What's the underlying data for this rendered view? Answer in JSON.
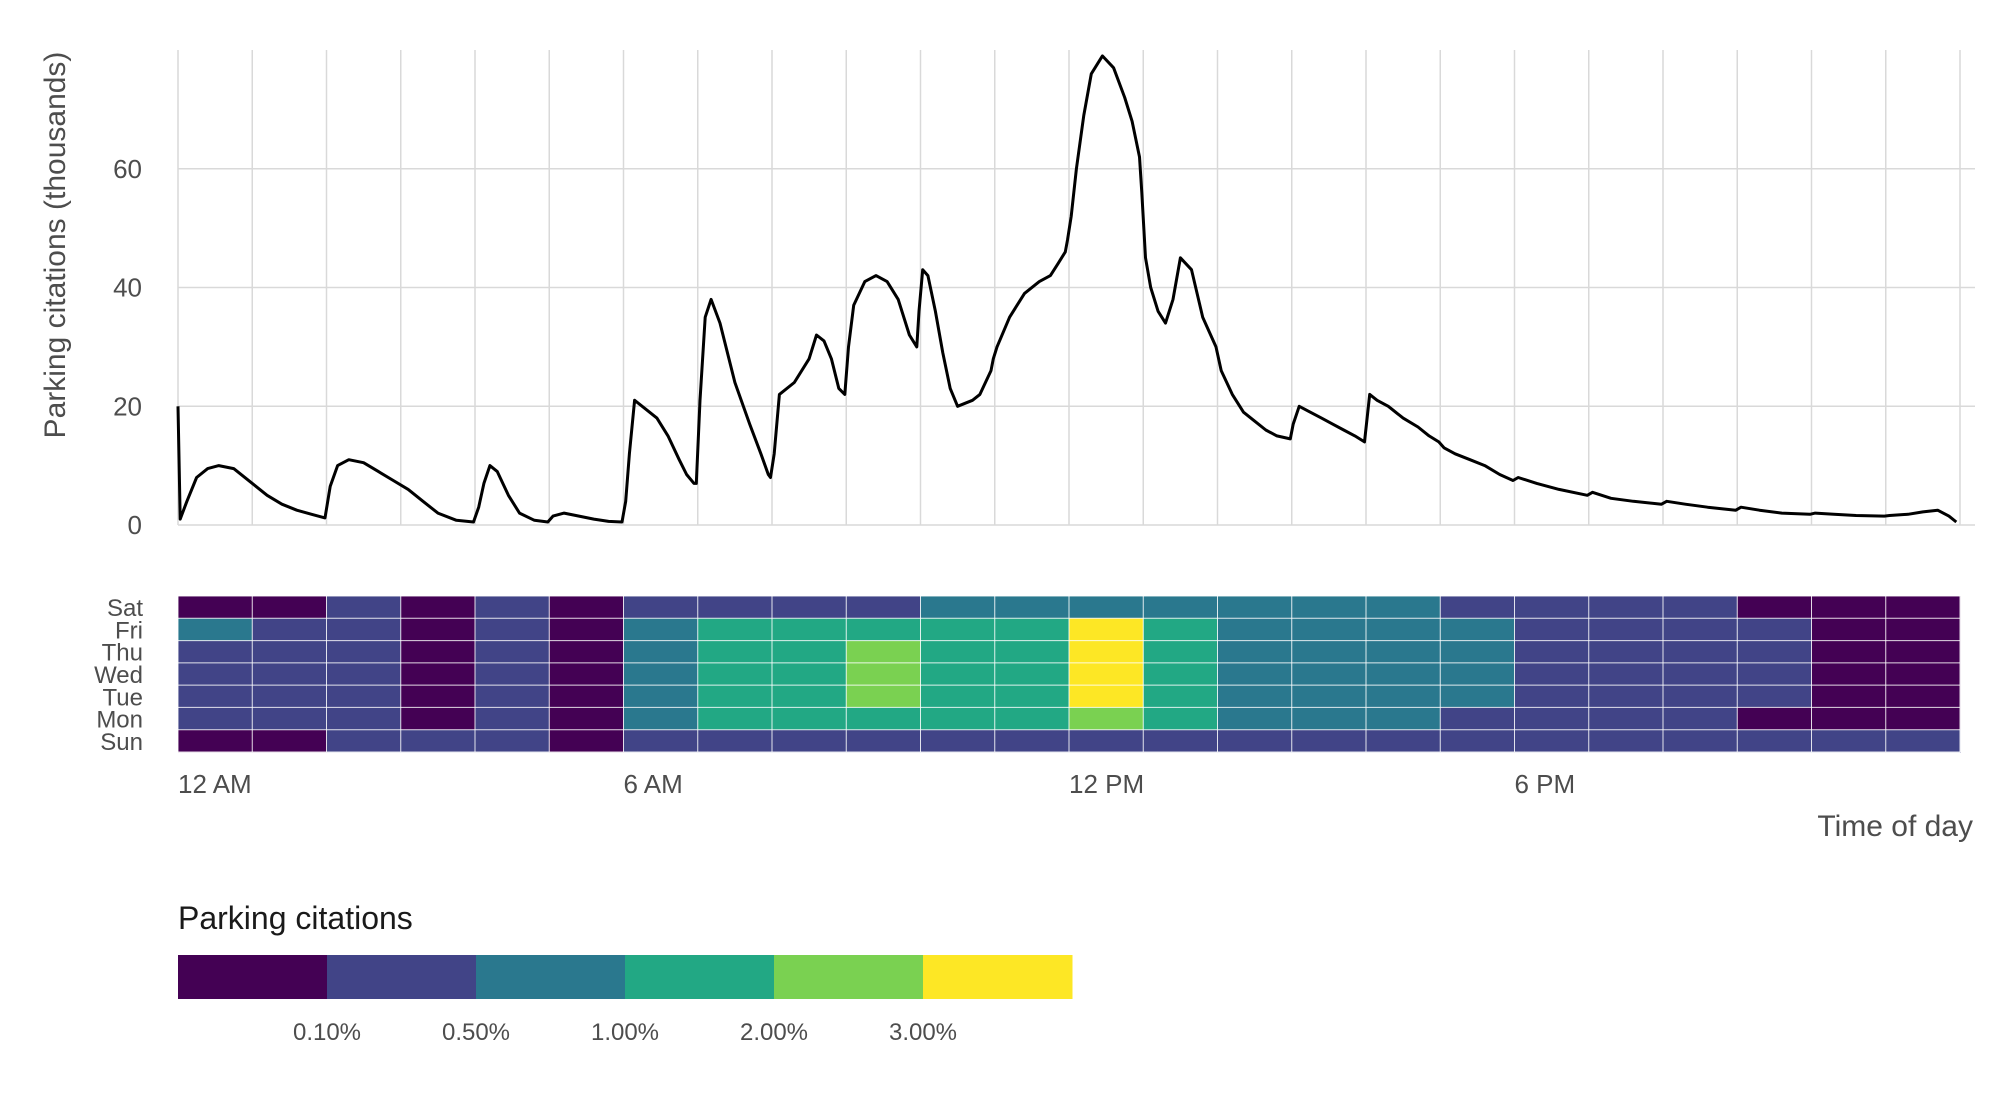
{
  "chart_data": [
    {
      "type": "line",
      "ylabel": "Parking citations (thousands)",
      "y_ticks": [
        0,
        20,
        40,
        60
      ],
      "ylim": [
        0,
        80
      ],
      "xlim": [
        0,
        24
      ],
      "grid": true,
      "x_unit": "hour of day",
      "series": [
        {
          "color": "#000000",
          "x": [
            0.0,
            0.03,
            0.12,
            0.25,
            0.4,
            0.55,
            0.75,
            1.0,
            1.2,
            1.4,
            1.6,
            1.8,
            1.98,
            2.05,
            2.15,
            2.3,
            2.5,
            2.7,
            2.9,
            3.1,
            3.3,
            3.5,
            3.75,
            3.98,
            4.05,
            4.12,
            4.2,
            4.3,
            4.45,
            4.6,
            4.8,
            4.98,
            5.05,
            5.2,
            5.4,
            5.6,
            5.8,
            5.98,
            6.03,
            6.08,
            6.15,
            6.3,
            6.45,
            6.6,
            6.75,
            6.85,
            6.95,
            6.98,
            7.03,
            7.1,
            7.18,
            7.3,
            7.5,
            7.7,
            7.85,
            7.95,
            7.98,
            8.03,
            8.1,
            8.3,
            8.5,
            8.6,
            8.7,
            8.8,
            8.9,
            8.98,
            9.03,
            9.1,
            9.25,
            9.4,
            9.55,
            9.7,
            9.85,
            9.95,
            9.98,
            10.03,
            10.1,
            10.2,
            10.3,
            10.4,
            10.5,
            10.6,
            10.7,
            10.8,
            10.95,
            10.98,
            11.03,
            11.2,
            11.4,
            11.6,
            11.75,
            11.85,
            11.95,
            11.98,
            12.03,
            12.1,
            12.2,
            12.3,
            12.45,
            12.6,
            12.75,
            12.85,
            12.95,
            12.98,
            13.03,
            13.1,
            13.2,
            13.3,
            13.4,
            13.5,
            13.65,
            13.8,
            13.98,
            14.05,
            14.2,
            14.35,
            14.5,
            14.65,
            14.8,
            14.98,
            15.02,
            15.1,
            15.25,
            15.4,
            15.55,
            15.7,
            15.85,
            15.98,
            16.05,
            16.15,
            16.3,
            16.5,
            16.7,
            16.85,
            16.98,
            17.05,
            17.2,
            17.4,
            17.6,
            17.8,
            17.98,
            18.05,
            18.3,
            18.6,
            18.98,
            19.05,
            19.3,
            19.6,
            19.98,
            20.05,
            20.3,
            20.6,
            20.98,
            21.05,
            21.3,
            21.6,
            21.98,
            22.05,
            22.3,
            22.6,
            22.98,
            23.05,
            23.3,
            23.5,
            23.7,
            23.85,
            23.95
          ],
          "y": [
            20.0,
            1.0,
            4.0,
            8.0,
            9.5,
            10.0,
            9.5,
            7.0,
            5.0,
            3.5,
            2.5,
            1.8,
            1.2,
            6.5,
            10.0,
            11.0,
            10.5,
            9.0,
            7.5,
            6.0,
            4.0,
            2.0,
            0.8,
            0.5,
            3.0,
            7.0,
            10.0,
            9.0,
            5.0,
            2.0,
            0.8,
            0.5,
            1.5,
            2.0,
            1.5,
            1.0,
            0.6,
            0.5,
            4.0,
            12.0,
            21.0,
            19.5,
            18.0,
            15.0,
            11.0,
            8.5,
            7.0,
            7.0,
            21.0,
            35.0,
            38.0,
            34.0,
            24.0,
            17.0,
            12.0,
            8.5,
            8.0,
            12.0,
            22.0,
            24.0,
            28.0,
            32.0,
            31.0,
            28.0,
            23.0,
            22.0,
            30.0,
            37.0,
            41.0,
            42.0,
            41.0,
            38.0,
            32.0,
            30.0,
            36.0,
            43.0,
            42.0,
            36.0,
            29.0,
            23.0,
            20.0,
            20.5,
            21.0,
            22.0,
            26.0,
            28.0,
            30.0,
            35.0,
            39.0,
            41.0,
            42.0,
            44.0,
            46.0,
            48.0,
            52.0,
            60.0,
            69.0,
            76.0,
            79.0,
            77.0,
            72.0,
            68.0,
            62.0,
            56.0,
            45.0,
            40.0,
            36.0,
            34.0,
            38.0,
            45.0,
            43.0,
            35.0,
            30.0,
            26.0,
            22.0,
            19.0,
            17.5,
            16.0,
            15.0,
            14.5,
            17.0,
            20.0,
            19.0,
            18.0,
            17.0,
            16.0,
            15.0,
            14.0,
            22.0,
            21.0,
            20.0,
            18.0,
            16.5,
            15.0,
            14.0,
            13.0,
            12.0,
            11.0,
            10.0,
            8.5,
            7.5,
            8.0,
            7.0,
            6.0,
            5.0,
            5.5,
            4.5,
            4.0,
            3.5,
            4.0,
            3.5,
            3.0,
            2.5,
            3.0,
            2.5,
            2.0,
            1.8,
            2.0,
            1.8,
            1.6,
            1.5,
            1.6,
            1.8,
            2.2,
            2.5,
            1.5,
            0.5
          ]
        }
      ]
    },
    {
      "type": "heatmap",
      "xlabel": "Time of day",
      "x_ticks": [
        "12 AM",
        "6 AM",
        "12 PM",
        "6 PM"
      ],
      "x_tick_hours": [
        0,
        6,
        12,
        18
      ],
      "rows": [
        "Sun",
        "Mon",
        "Tue",
        "Wed",
        "Thu",
        "Fri",
        "Sat"
      ],
      "row_labels_top_to_bottom": [
        "Sat",
        "Fri",
        "Thu",
        "Wed",
        "Tue",
        "Mon",
        "Sun"
      ],
      "hours": 24,
      "values_level_by_row": {
        "Sat": [
          0,
          0,
          1,
          0,
          1,
          0,
          1,
          1,
          1,
          1,
          2,
          2,
          2,
          2,
          2,
          2,
          2,
          1,
          1,
          1,
          1,
          0,
          0,
          0
        ],
        "Fri": [
          2,
          1,
          1,
          0,
          1,
          0,
          2,
          3,
          3,
          3,
          3,
          3,
          5,
          3,
          2,
          2,
          2,
          2,
          1,
          1,
          1,
          1,
          0,
          0
        ],
        "Thu": [
          1,
          1,
          1,
          0,
          1,
          0,
          2,
          3,
          3,
          4,
          3,
          3,
          5,
          3,
          2,
          2,
          2,
          2,
          1,
          1,
          1,
          1,
          0,
          0
        ],
        "Wed": [
          1,
          1,
          1,
          0,
          1,
          0,
          2,
          3,
          3,
          4,
          3,
          3,
          5,
          3,
          2,
          2,
          2,
          2,
          1,
          1,
          1,
          1,
          0,
          0
        ],
        "Tue": [
          1,
          1,
          1,
          0,
          1,
          0,
          2,
          3,
          3,
          4,
          3,
          3,
          5,
          3,
          2,
          2,
          2,
          2,
          1,
          1,
          1,
          1,
          0,
          0
        ],
        "Mon": [
          1,
          1,
          1,
          0,
          1,
          0,
          2,
          3,
          3,
          3,
          3,
          3,
          4,
          3,
          2,
          2,
          2,
          1,
          1,
          1,
          1,
          0,
          0,
          0
        ],
        "Sun": [
          0,
          0,
          1,
          1,
          1,
          0,
          1,
          1,
          1,
          1,
          1,
          1,
          1,
          1,
          1,
          1,
          1,
          1,
          1,
          1,
          1,
          1,
          1,
          1
        ]
      },
      "legend": {
        "title": "Parking citations",
        "colors": [
          "#440154",
          "#414487",
          "#2a788e",
          "#22a884",
          "#7ad151",
          "#fde725"
        ],
        "break_labels": [
          "0.10%",
          "0.50%",
          "1.00%",
          "2.00%",
          "3.00%"
        ],
        "placement": "bottom-left"
      }
    }
  ]
}
